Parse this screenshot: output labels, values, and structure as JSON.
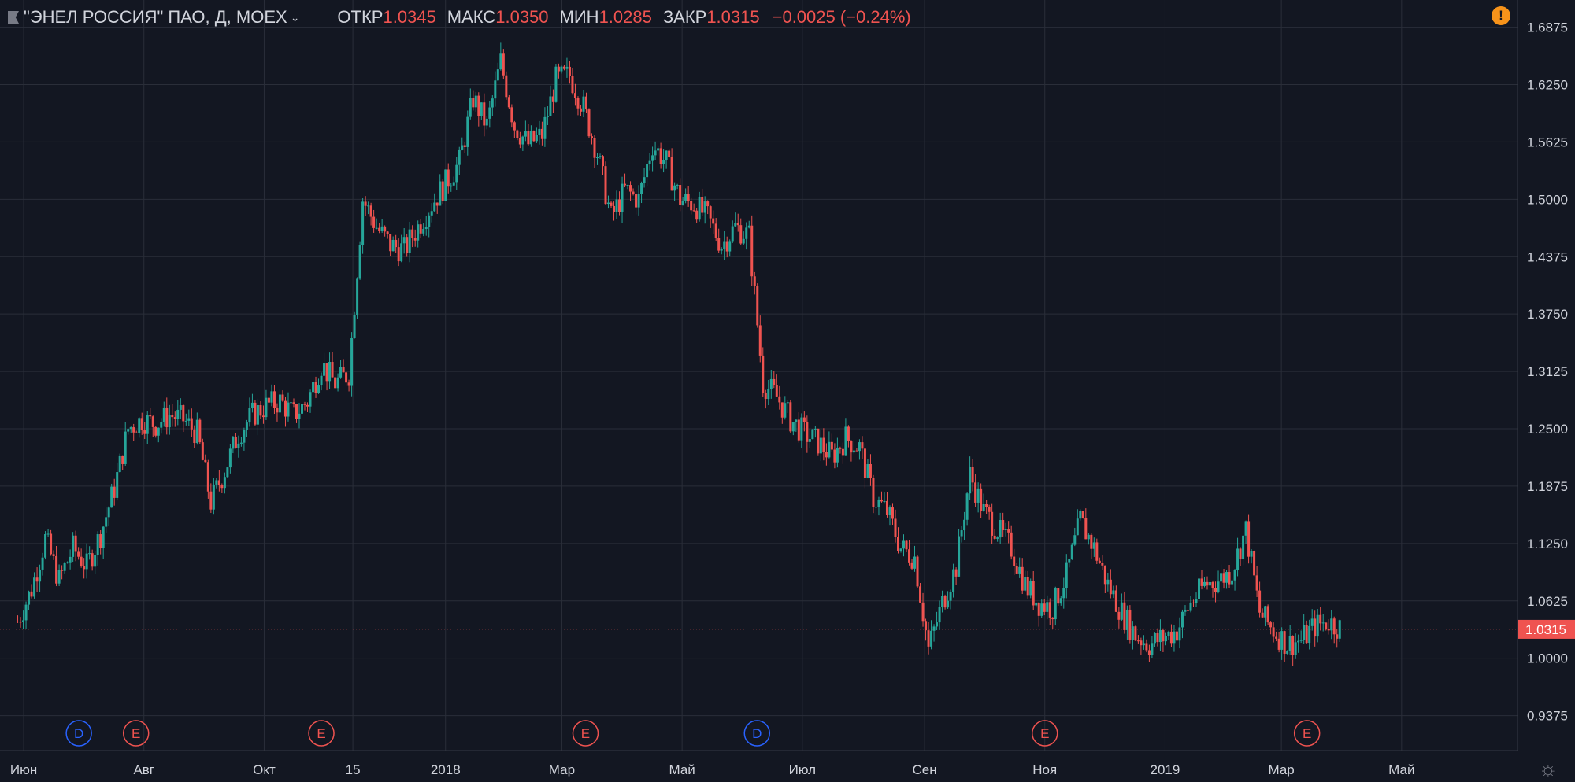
{
  "header": {
    "symbol": "\"ЭНЕЛ РОССИЯ\" ПАО, Д, MOEX",
    "open_label": "ОТКР",
    "open_value": "1.0345",
    "high_label": "МАКС",
    "high_value": "1.0350",
    "low_label": "МИН",
    "low_value": "1.0285",
    "close_label": "ЗАКР",
    "close_value": "1.0315",
    "change": "−0.0025 (−0.24%)"
  },
  "colors": {
    "up": "#26a69a",
    "down": "#ef5350",
    "background": "#131722",
    "grid": "#2a2e39",
    "dividend": "#2962ff",
    "earnings": "#ef5350",
    "warning": "#f7931a"
  },
  "icons": [
    "flag-icon",
    "chevron-down-icon",
    "warning-icon",
    "settings-icon"
  ],
  "chart_data": {
    "type": "candlestick",
    "price_axis": [
      "1.6875",
      "1.6250",
      "1.5625",
      "1.5000",
      "1.4375",
      "1.3750",
      "1.3125",
      "1.2500",
      "1.1875",
      "1.1250",
      "1.0625",
      "1.0000",
      "0.9375"
    ],
    "ylim": [
      0.92,
      1.7
    ],
    "current_price": "1.0315",
    "time_axis": [
      "Июн",
      "Авг",
      "Окт",
      "15",
      "2018",
      "Мар",
      "Май",
      "Июл",
      "Сен",
      "Ноя",
      "2019",
      "Мар",
      "Май"
    ],
    "events": [
      {
        "type": "D",
        "date": "2017-06-29"
      },
      {
        "type": "E",
        "date": "2017-07-28"
      },
      {
        "type": "E",
        "date": "2017-10-30"
      },
      {
        "type": "E",
        "date": "2018-03-13"
      },
      {
        "type": "D",
        "date": "2018-06-08"
      },
      {
        "type": "E",
        "date": "2018-11-01"
      },
      {
        "type": "E",
        "date": "2019-03-14"
      }
    ],
    "series": [
      {
        "date": "2017-05-29",
        "close": 1.04
      },
      {
        "date": "2017-06-05",
        "close": 1.075
      },
      {
        "date": "2017-06-12",
        "close": 1.13
      },
      {
        "date": "2017-06-19",
        "close": 1.085
      },
      {
        "date": "2017-06-26",
        "close": 1.12
      },
      {
        "date": "2017-07-03",
        "close": 1.1
      },
      {
        "date": "2017-07-10",
        "close": 1.135
      },
      {
        "date": "2017-07-17",
        "close": 1.185
      },
      {
        "date": "2017-07-24",
        "close": 1.25
      },
      {
        "date": "2017-07-31",
        "close": 1.26
      },
      {
        "date": "2017-08-07",
        "close": 1.255
      },
      {
        "date": "2017-08-14",
        "close": 1.265
      },
      {
        "date": "2017-08-21",
        "close": 1.26
      },
      {
        "date": "2017-08-28",
        "close": 1.245
      },
      {
        "date": "2017-09-04",
        "close": 1.17
      },
      {
        "date": "2017-09-11",
        "close": 1.205
      },
      {
        "date": "2017-09-18",
        "close": 1.245
      },
      {
        "date": "2017-09-25",
        "close": 1.265
      },
      {
        "date": "2017-10-02",
        "close": 1.275
      },
      {
        "date": "2017-10-09",
        "close": 1.28
      },
      {
        "date": "2017-10-16",
        "close": 1.265
      },
      {
        "date": "2017-10-23",
        "close": 1.28
      },
      {
        "date": "2017-10-30",
        "close": 1.32
      },
      {
        "date": "2017-11-06",
        "close": 1.3
      },
      {
        "date": "2017-11-13",
        "close": 1.31
      },
      {
        "date": "2017-11-20",
        "close": 1.5
      },
      {
        "date": "2017-11-27",
        "close": 1.47
      },
      {
        "date": "2017-12-04",
        "close": 1.45
      },
      {
        "date": "2017-12-11",
        "close": 1.445
      },
      {
        "date": "2017-12-18",
        "close": 1.47
      },
      {
        "date": "2017-12-25",
        "close": 1.495
      },
      {
        "date": "2018-01-08",
        "close": 1.54
      },
      {
        "date": "2018-01-15",
        "close": 1.61
      },
      {
        "date": "2018-01-22",
        "close": 1.58
      },
      {
        "date": "2018-01-29",
        "close": 1.65
      },
      {
        "date": "2018-02-05",
        "close": 1.58
      },
      {
        "date": "2018-02-12",
        "close": 1.56
      },
      {
        "date": "2018-02-19",
        "close": 1.57
      },
      {
        "date": "2018-02-26",
        "close": 1.63
      },
      {
        "date": "2018-03-05",
        "close": 1.635
      },
      {
        "date": "2018-03-12",
        "close": 1.6
      },
      {
        "date": "2018-03-19",
        "close": 1.55
      },
      {
        "date": "2018-03-26",
        "close": 1.48
      },
      {
        "date": "2018-04-02",
        "close": 1.51
      },
      {
        "date": "2018-04-09",
        "close": 1.5
      },
      {
        "date": "2018-04-16",
        "close": 1.56
      },
      {
        "date": "2018-04-23",
        "close": 1.54
      },
      {
        "date": "2018-04-30",
        "close": 1.5
      },
      {
        "date": "2018-05-07",
        "close": 1.495
      },
      {
        "date": "2018-05-14",
        "close": 1.48
      },
      {
        "date": "2018-05-21",
        "close": 1.45
      },
      {
        "date": "2018-05-28",
        "close": 1.47
      },
      {
        "date": "2018-06-04",
        "close": 1.46
      },
      {
        "date": "2018-06-11",
        "close": 1.3
      },
      {
        "date": "2018-06-18",
        "close": 1.285
      },
      {
        "date": "2018-06-25",
        "close": 1.26
      },
      {
        "date": "2018-07-02",
        "close": 1.245
      },
      {
        "date": "2018-07-09",
        "close": 1.235
      },
      {
        "date": "2018-07-16",
        "close": 1.22
      },
      {
        "date": "2018-07-23",
        "close": 1.24
      },
      {
        "date": "2018-07-30",
        "close": 1.23
      },
      {
        "date": "2018-08-06",
        "close": 1.175
      },
      {
        "date": "2018-08-13",
        "close": 1.16
      },
      {
        "date": "2018-08-20",
        "close": 1.12
      },
      {
        "date": "2018-08-27",
        "close": 1.11
      },
      {
        "date": "2018-09-03",
        "close": 1.01
      },
      {
        "date": "2018-09-10",
        "close": 1.06
      },
      {
        "date": "2018-09-17",
        "close": 1.1
      },
      {
        "date": "2018-09-24",
        "close": 1.2
      },
      {
        "date": "2018-10-01",
        "close": 1.16
      },
      {
        "date": "2018-10-08",
        "close": 1.14
      },
      {
        "date": "2018-10-15",
        "close": 1.12
      },
      {
        "date": "2018-10-22",
        "close": 1.08
      },
      {
        "date": "2018-10-29",
        "close": 1.06
      },
      {
        "date": "2018-11-05",
        "close": 1.055
      },
      {
        "date": "2018-11-12",
        "close": 1.09
      },
      {
        "date": "2018-11-19",
        "close": 1.15
      },
      {
        "date": "2018-11-26",
        "close": 1.12
      },
      {
        "date": "2018-12-03",
        "close": 1.08
      },
      {
        "date": "2018-12-10",
        "close": 1.05
      },
      {
        "date": "2018-12-17",
        "close": 1.025
      },
      {
        "date": "2018-12-24",
        "close": 1.015
      },
      {
        "date": "2019-01-07",
        "close": 1.03
      },
      {
        "date": "2019-01-14",
        "close": 1.06
      },
      {
        "date": "2019-01-21",
        "close": 1.08
      },
      {
        "date": "2019-01-28",
        "close": 1.085
      },
      {
        "date": "2019-02-04",
        "close": 1.095
      },
      {
        "date": "2019-02-11",
        "close": 1.14
      },
      {
        "date": "2019-02-18",
        "close": 1.05
      },
      {
        "date": "2019-02-25",
        "close": 1.03
      },
      {
        "date": "2019-03-04",
        "close": 1.015
      },
      {
        "date": "2019-03-11",
        "close": 1.02
      },
      {
        "date": "2019-03-18",
        "close": 1.035
      },
      {
        "date": "2019-03-25",
        "close": 1.04
      },
      {
        "date": "2019-04-01",
        "close": 1.0315
      }
    ]
  }
}
